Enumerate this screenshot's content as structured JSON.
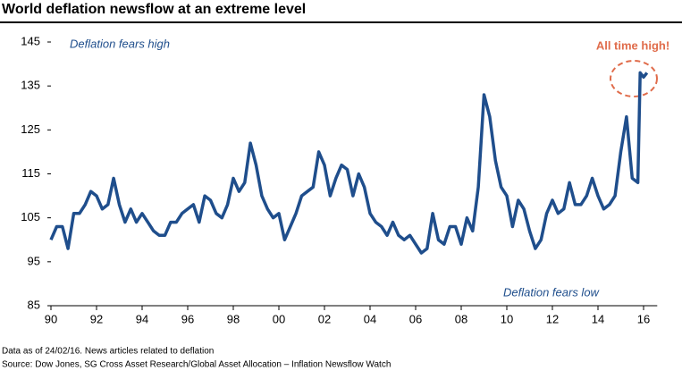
{
  "chart_data": {
    "type": "line",
    "title": "World deflation newsflow at an extreme level",
    "annotations": [
      "Deflation fears high",
      "Deflation fears low",
      "All time high!"
    ],
    "notes": [
      "Data as of 24/02/16. News articles related to deflation",
      "Source:  Dow Jones, SG Cross Asset Research/Global Asset Allocation – Inflation Newsflow Watch"
    ],
    "x": [
      1990,
      1990.25,
      1990.5,
      1990.75,
      1991,
      1991.25,
      1991.5,
      1991.75,
      1992,
      1992.25,
      1992.5,
      1992.75,
      1993,
      1993.25,
      1993.5,
      1993.75,
      1994,
      1994.25,
      1994.5,
      1994.75,
      1995,
      1995.25,
      1995.5,
      1995.75,
      1996,
      1996.25,
      1996.5,
      1996.75,
      1997,
      1997.25,
      1997.5,
      1997.75,
      1998,
      1998.25,
      1998.5,
      1998.75,
      1999,
      1999.25,
      1999.5,
      1999.75,
      2000,
      2000.25,
      2000.5,
      2000.75,
      2001,
      2001.25,
      2001.5,
      2001.75,
      2002,
      2002.25,
      2002.5,
      2002.75,
      2003,
      2003.25,
      2003.5,
      2003.75,
      2004,
      2004.25,
      2004.5,
      2004.75,
      2005,
      2005.25,
      2005.5,
      2005.75,
      2006,
      2006.25,
      2006.5,
      2006.75,
      2007,
      2007.25,
      2007.5,
      2007.75,
      2008,
      2008.25,
      2008.5,
      2008.75,
      2009,
      2009.25,
      2009.5,
      2009.75,
      2010,
      2010.25,
      2010.5,
      2010.75,
      2011,
      2011.25,
      2011.5,
      2011.75,
      2012,
      2012.25,
      2012.5,
      2012.75,
      2013,
      2013.25,
      2013.5,
      2013.75,
      2014,
      2014.25,
      2014.5,
      2014.75,
      2015,
      2015.25,
      2015.5,
      2015.75,
      2015.85,
      2016,
      2016.15
    ],
    "series": [
      {
        "name": "World deflation newsflow",
        "color": "#1f4e8c",
        "values": [
          100,
          103,
          103,
          98,
          106,
          106,
          108,
          111,
          110,
          107,
          108,
          114,
          108,
          104,
          107,
          104,
          106,
          104,
          102,
          101,
          101,
          104,
          104,
          106,
          107,
          108,
          104,
          110,
          109,
          106,
          105,
          108,
          114,
          111,
          113,
          122,
          117,
          110,
          107,
          105,
          106,
          100,
          103,
          106,
          110,
          111,
          112,
          120,
          117,
          110,
          114,
          117,
          116,
          110,
          115,
          112,
          106,
          104,
          103,
          101,
          104,
          101,
          100,
          101,
          99,
          97,
          98,
          106,
          100,
          99,
          103,
          103,
          99,
          105,
          102,
          112,
          133,
          128,
          118,
          112,
          110,
          103,
          109,
          107,
          102,
          98,
          100,
          106,
          109,
          106,
          107,
          113,
          108,
          108,
          110,
          114,
          110,
          107,
          108,
          110,
          120,
          128,
          114,
          113,
          138,
          137,
          138
        ]
      }
    ],
    "xlim": [
      1990,
      2016.6
    ],
    "xticks": [
      {
        "value": 1990,
        "label": "90"
      },
      {
        "value": 1992,
        "label": "92"
      },
      {
        "value": 1994,
        "label": "94"
      },
      {
        "value": 1996,
        "label": "96"
      },
      {
        "value": 1998,
        "label": "98"
      },
      {
        "value": 2000,
        "label": "00"
      },
      {
        "value": 2002,
        "label": "02"
      },
      {
        "value": 2004,
        "label": "04"
      },
      {
        "value": 2006,
        "label": "06"
      },
      {
        "value": 2008,
        "label": "08"
      },
      {
        "value": 2010,
        "label": "10"
      },
      {
        "value": 2012,
        "label": "12"
      },
      {
        "value": 2014,
        "label": "14"
      },
      {
        "value": 2016,
        "label": "16"
      }
    ],
    "ylim": [
      85,
      145
    ],
    "yticks": [
      85,
      95,
      105,
      115,
      125,
      135,
      145
    ]
  }
}
